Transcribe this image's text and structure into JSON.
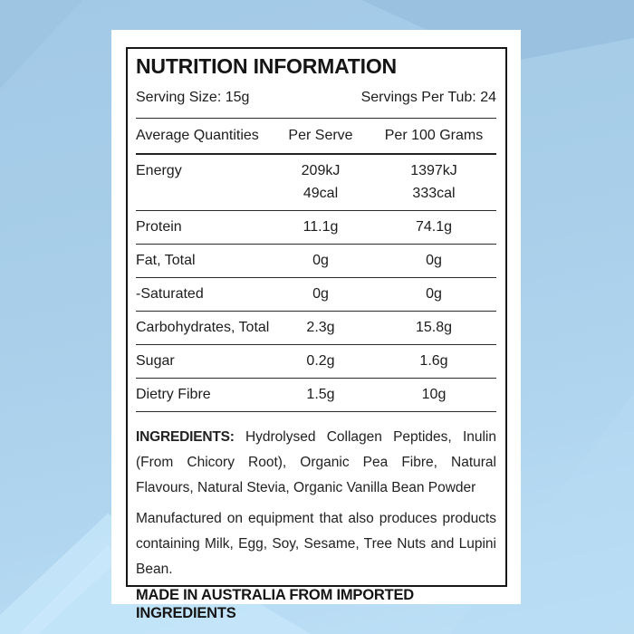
{
  "background": {
    "base_color": "#a9cfea",
    "shade_dark": "#9ac2e0",
    "shade_light": "#c4e5f9",
    "card_color": "#ffffff",
    "border_color": "#161616",
    "text_color": "#1c1c1c"
  },
  "label": {
    "title": "NUTRITION INFORMATION",
    "serving_size": "Serving Size: 15g",
    "servings_per_tub": "Servings Per Tub: 24",
    "ingredients_label": "INGREDIENTS:",
    "ingredients_text": "Hydrolysed Collagen Peptides, Inulin (From Chicory Root), Organic Pea Fibre, Natural Flavours, Natural Stevia, Organic Vanilla Bean Powder",
    "allergen_statement": "Manufactured on equipment that also produces products containing Milk, Egg, Soy, Sesame, Tree Nuts and Lupini Bean.",
    "origin_statement": "MADE IN AUSTRALIA FROM IMPORTED INGREDIENTS"
  },
  "nutrition_table": {
    "headers": [
      "Average Quantities",
      "Per Serve",
      "Per 100 Grams"
    ],
    "rows": [
      {
        "label": "Energy",
        "per_serve": [
          "209kJ",
          "49cal"
        ],
        "per_100g": [
          "1397kJ",
          "333cal"
        ]
      },
      {
        "label": "Protein",
        "per_serve": "11.1g",
        "per_100g": "74.1g"
      },
      {
        "label": "Fat, Total",
        "per_serve": "0g",
        "per_100g": "0g"
      },
      {
        "label": "-Saturated",
        "per_serve": "0g",
        "per_100g": "0g"
      },
      {
        "label": "Carbohydrates, Total",
        "per_serve": "2.3g",
        "per_100g": "15.8g"
      },
      {
        "label": "Sugar",
        "per_serve": "0.2g",
        "per_100g": "1.6g"
      },
      {
        "label": "Dietry Fibre",
        "per_serve": "1.5g",
        "per_100g": "10g"
      }
    ]
  }
}
